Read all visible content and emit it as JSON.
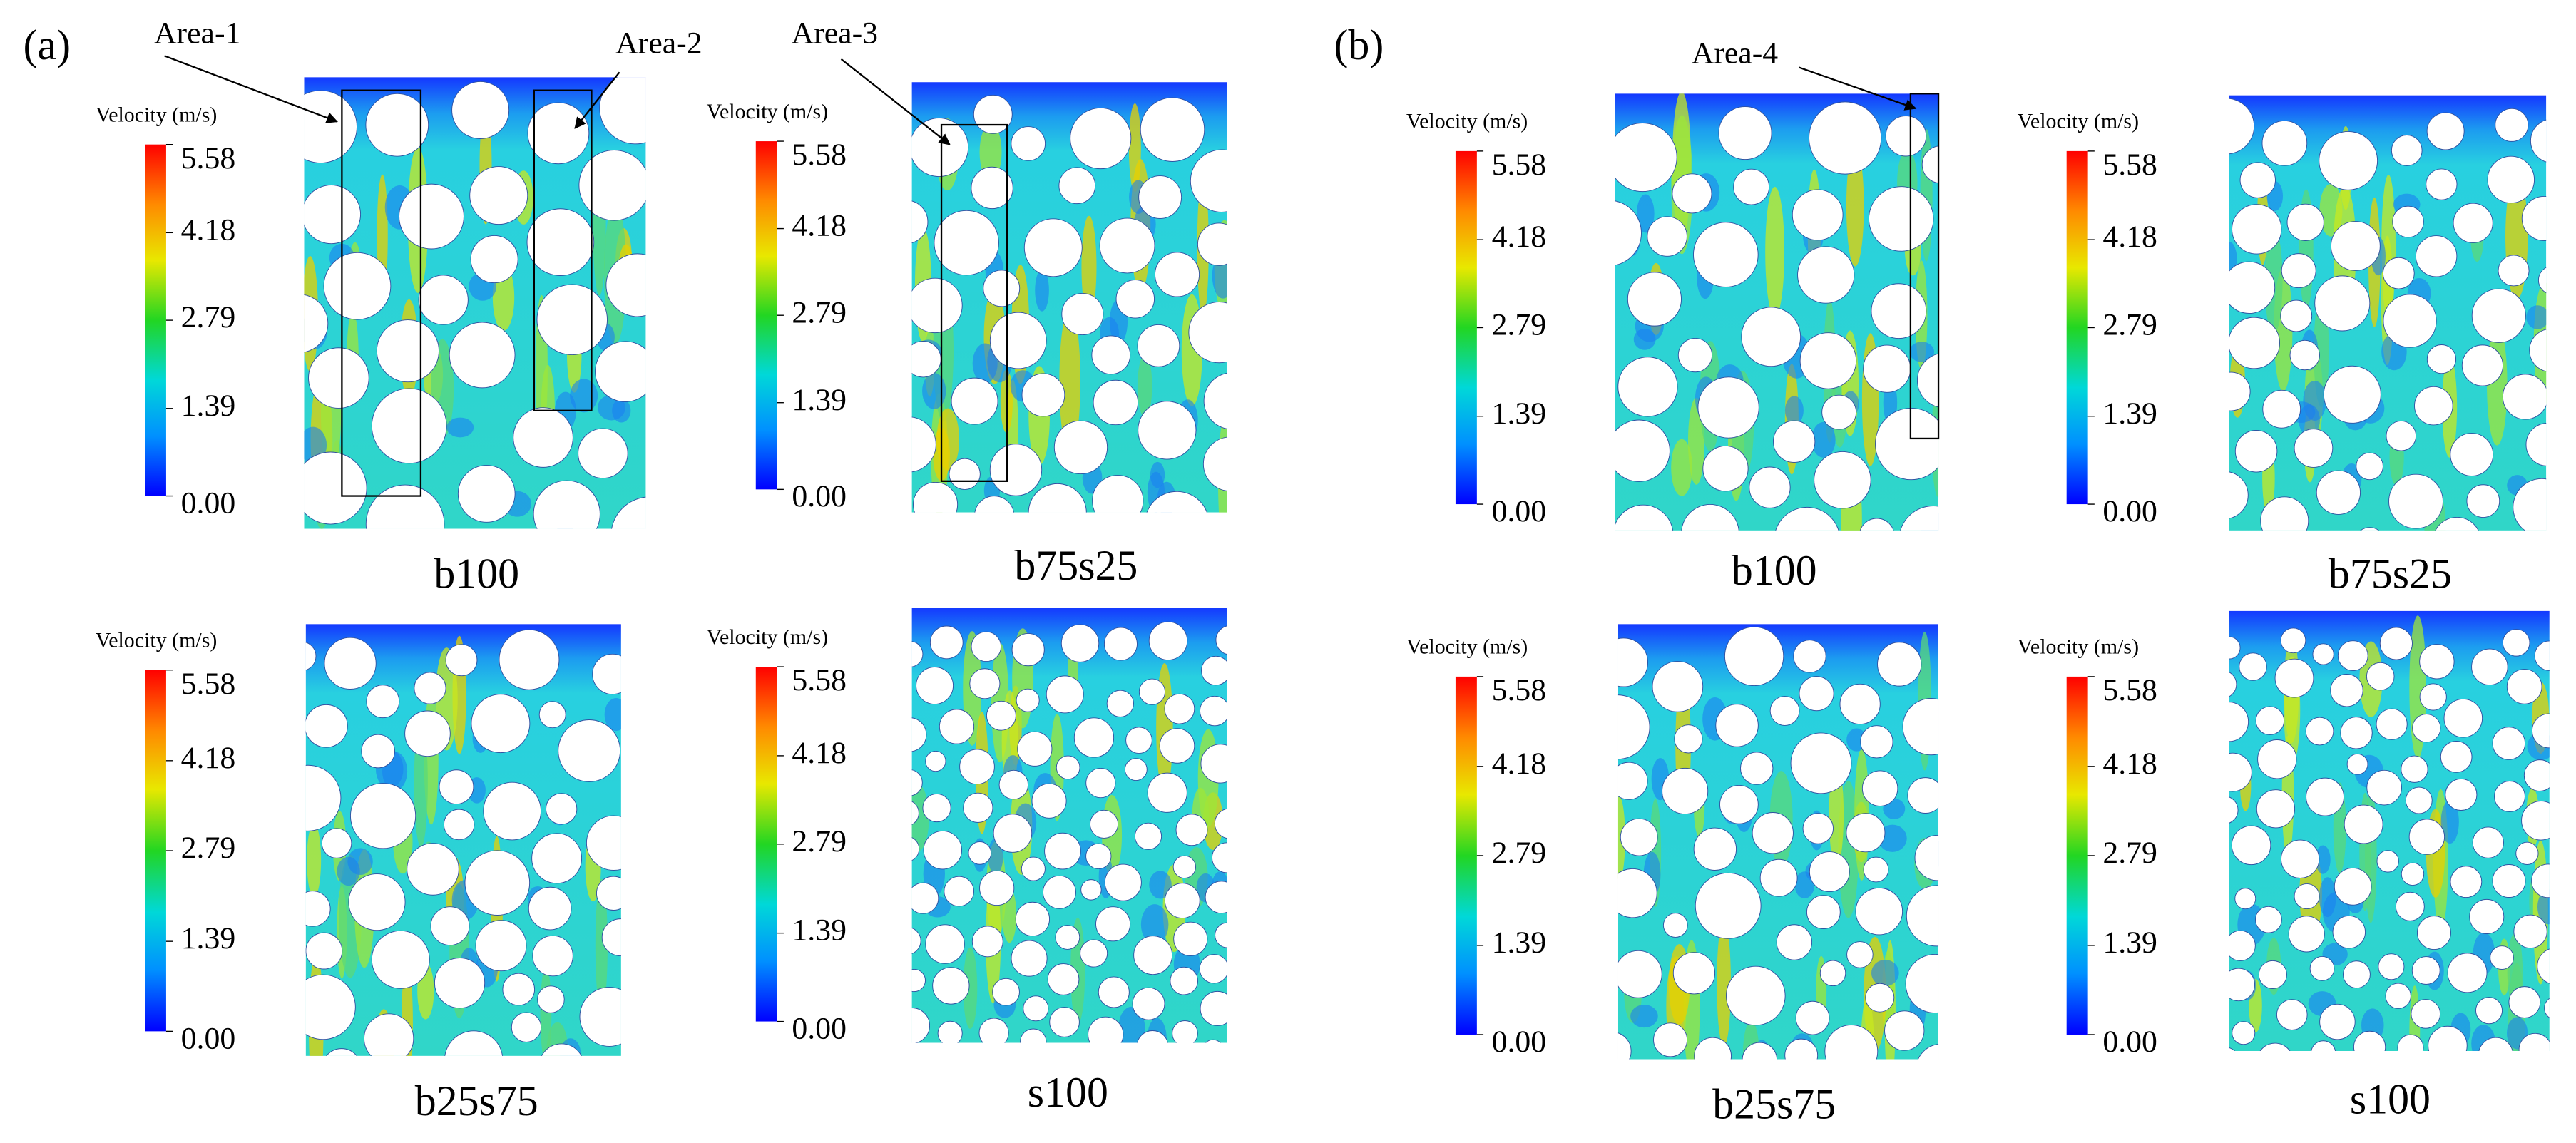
{
  "panels": [
    {
      "label": "(a)",
      "plots": [
        {
          "name": "b100",
          "colorbar": {
            "title": "Velocity (m/s)",
            "range": [
              0,
              5.58
            ],
            "ticks": [
              5.58,
              4.18,
              2.79,
              1.39,
              {
                "value": 0,
                "label": "0.00"
              }
            ]
          },
          "annotations": [
            "Area-1",
            "Area-2"
          ]
        },
        {
          "name": "b75s25",
          "colorbar": {
            "title": "Velocity (m/s)",
            "range": [
              0,
              5.58
            ],
            "ticks": [
              5.58,
              4.18,
              2.79,
              1.39,
              {
                "value": 0,
                "label": "0.00"
              }
            ]
          },
          "annotations": [
            "Area-3"
          ]
        },
        {
          "name": "b25s75",
          "colorbar": {
            "title": "Velocity (m/s)",
            "range": [
              0,
              5.58
            ],
            "ticks": [
              5.58,
              4.18,
              2.79,
              1.39,
              {
                "value": 0,
                "label": "0.00"
              }
            ]
          },
          "annotations": []
        },
        {
          "name": "s100",
          "colorbar": {
            "title": "Velocity (m/s)",
            "range": [
              0,
              5.58
            ],
            "ticks": [
              5.58,
              4.18,
              2.79,
              1.39,
              {
                "value": 0,
                "label": "0.00"
              }
            ]
          },
          "annotations": []
        }
      ]
    },
    {
      "label": "(b)",
      "plots": [
        {
          "name": "b100",
          "colorbar": {
            "title": "Velocity (m/s)",
            "range": [
              0,
              5.58
            ],
            "ticks": [
              5.58,
              4.18,
              2.79,
              1.39,
              {
                "value": 0,
                "label": "0.00"
              }
            ]
          },
          "annotations": [
            "Area-4"
          ]
        },
        {
          "name": "b75s25",
          "colorbar": {
            "title": "Velocity (m/s)",
            "range": [
              0,
              5.58
            ],
            "ticks": [
              5.58,
              4.18,
              2.79,
              1.39,
              {
                "value": 0,
                "label": "0.00"
              }
            ]
          },
          "annotations": []
        },
        {
          "name": "b25s75",
          "colorbar": {
            "title": "Velocity (m/s)",
            "range": [
              0,
              5.58
            ],
            "ticks": [
              5.58,
              4.18,
              2.79,
              1.39,
              {
                "value": 0,
                "label": "0.00"
              }
            ]
          },
          "annotations": []
        },
        {
          "name": "s100",
          "colorbar": {
            "title": "Velocity (m/s)",
            "range": [
              0,
              5.58
            ],
            "ticks": [
              5.58,
              4.18,
              2.79,
              1.39,
              {
                "value": 0,
                "label": "0.00"
              }
            ]
          },
          "annotations": []
        }
      ]
    }
  ]
}
